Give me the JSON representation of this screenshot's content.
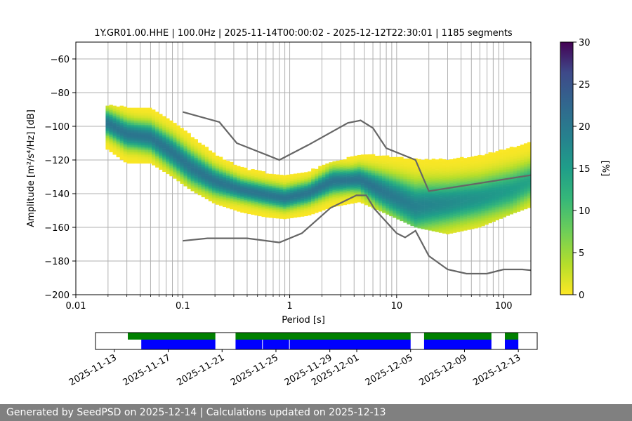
{
  "chart_data": [
    {
      "type": "heatmap",
      "title": "1Y.GR01.00.HHE | 100.0Hz | 2025-11-14T00:00:02 - 2025-12-12T22:30:01 | 1185 segments",
      "xlabel": "Period [s]",
      "ylabel": "Amplitude [m²/s⁴/Hz] [dB]",
      "xscale": "log",
      "xlim": [
        0.01,
        180
      ],
      "ylim": [
        -200,
        -50
      ],
      "xticks": [
        "0.01",
        "0.1",
        "1",
        "10",
        "100"
      ],
      "yticks": [
        "−200",
        "−180",
        "−160",
        "−140",
        "−120",
        "−100",
        "−80",
        "−60"
      ],
      "grid": true,
      "colorbar": {
        "label": "[%]",
        "range": [
          0,
          30
        ],
        "ticks": [
          "0",
          "5",
          "10",
          "15",
          "20",
          "25",
          "30"
        ]
      },
      "ppsd_band": [
        {
          "period": 0.019,
          "mode": -98,
          "lo": -113,
          "hi": -88
        },
        {
          "period": 0.03,
          "mode": -105,
          "lo": -122,
          "hi": -89
        },
        {
          "period": 0.05,
          "mode": -107,
          "lo": -122,
          "hi": -90
        },
        {
          "period": 0.08,
          "mode": -116,
          "lo": -130,
          "hi": -97
        },
        {
          "period": 0.12,
          "mode": -125,
          "lo": -138,
          "hi": -106
        },
        {
          "period": 0.2,
          "mode": -133,
          "lo": -146,
          "hi": -117
        },
        {
          "period": 0.35,
          "mode": -138,
          "lo": -151,
          "hi": -125
        },
        {
          "period": 0.6,
          "mode": -141,
          "lo": -154,
          "hi": -128
        },
        {
          "period": 0.9,
          "mode": -143,
          "lo": -155,
          "hi": -130
        },
        {
          "period": 1.5,
          "mode": -140,
          "lo": -153,
          "hi": -127
        },
        {
          "period": 2.5,
          "mode": -133,
          "lo": -148,
          "hi": -122
        },
        {
          "period": 4.5,
          "mode": -132,
          "lo": -145,
          "hi": -117
        },
        {
          "period": 8,
          "mode": -140,
          "lo": -152,
          "hi": -118
        },
        {
          "period": 15,
          "mode": -148,
          "lo": -160,
          "hi": -120
        },
        {
          "period": 30,
          "mode": -146,
          "lo": -164,
          "hi": -120
        },
        {
          "period": 60,
          "mode": -143,
          "lo": -160,
          "hi": -118
        },
        {
          "period": 120,
          "mode": -138,
          "lo": -152,
          "hi": -113
        },
        {
          "period": 180,
          "mode": -133,
          "lo": -148,
          "hi": -110
        }
      ],
      "series": [
        {
          "x": [
            0.1,
            0.22,
            0.32,
            0.8,
            1.5,
            3.5,
            4.6,
            6.0,
            8.0,
            15.0,
            20.0,
            180.0
          ],
          "y": [
            -91.5,
            -97.5,
            -110,
            -120,
            -111,
            -98,
            -96.5,
            -101,
            -113,
            -120,
            -138.5,
            -129
          ],
          "color": "#666666"
        },
        {
          "x": [
            0.1,
            0.17,
            0.4,
            0.8,
            1.3,
            2.4,
            4.2,
            5.2,
            6.2,
            10.0,
            12.0,
            15.0,
            20.0,
            30.0,
            45.0,
            70.0,
            100.0,
            150.0,
            180.0
          ],
          "y": [
            -168,
            -166.5,
            -166.5,
            -169,
            -163.5,
            -148.5,
            -141,
            -141,
            -149,
            -163.5,
            -166,
            -162,
            -177,
            -185,
            -187.5,
            -187.5,
            -185,
            -185,
            -185.5
          ],
          "color": "#666666"
        }
      ]
    },
    {
      "type": "timeline",
      "xticks": [
        "2025-11-13",
        "2025-11-17",
        "2025-11-21",
        "2025-11-25",
        "2025-11-29",
        "2025-12-01",
        "2025-12-05",
        "2025-12-09",
        "2025-12-13"
      ],
      "green_segments": [
        [
          "2025-11-14",
          "2025-11-20.5"
        ],
        [
          "2025-11-22",
          "2025-12-05"
        ],
        [
          "2025-12-06",
          "2025-12-11"
        ],
        [
          "2025-12-12",
          "2025-12-13"
        ]
      ],
      "blue_segments": [
        [
          "2025-11-15",
          "2025-11-20.5"
        ],
        [
          "2025-11-22",
          "2025-12-05"
        ],
        [
          "2025-12-06",
          "2025-12-11"
        ],
        [
          "2025-12-12",
          "2025-12-13"
        ]
      ],
      "colors": {
        "green": "#008000",
        "blue": "#0000ff"
      }
    }
  ],
  "footer": {
    "text": "Generated by SeedPSD on 2025-12-14 | Calculations updated on 2025-12-13"
  }
}
